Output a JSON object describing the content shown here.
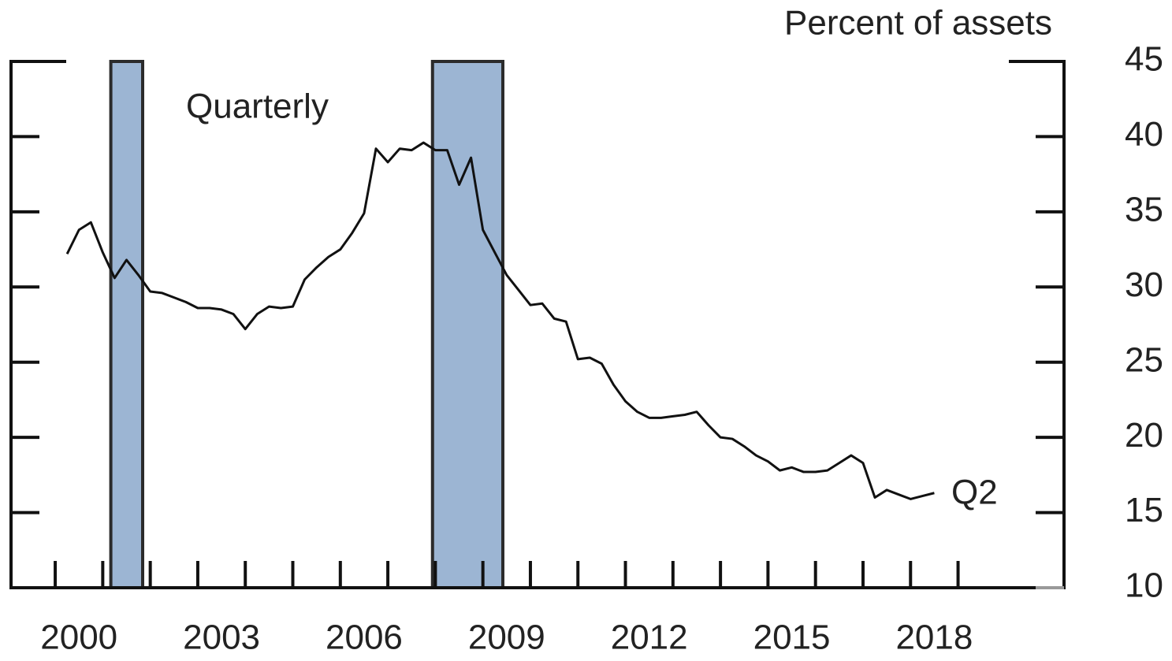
{
  "chart_data": {
    "type": "line",
    "y_axis_label": "Percent of assets",
    "annotations": [
      "Quarterly",
      "Q2"
    ],
    "x": [
      2000.25,
      2000.5,
      2000.75,
      2001,
      2001.25,
      2001.5,
      2001.75,
      2002,
      2002.25,
      2002.5,
      2002.75,
      2003,
      2003.25,
      2003.5,
      2003.75,
      2004,
      2004.25,
      2004.5,
      2004.75,
      2005,
      2005.25,
      2005.5,
      2005.75,
      2006,
      2006.25,
      2006.5,
      2006.75,
      2007,
      2007.25,
      2007.5,
      2007.75,
      2008,
      2008.25,
      2008.5,
      2008.75,
      2009,
      2009.25,
      2009.5,
      2009.75,
      2010,
      2010.25,
      2010.5,
      2010.75,
      2011,
      2011.25,
      2011.5,
      2011.75,
      2012,
      2012.25,
      2012.5,
      2012.75,
      2013,
      2013.25,
      2013.5,
      2013.75,
      2014,
      2014.25,
      2014.5,
      2014.75,
      2015,
      2015.25,
      2015.5,
      2015.75,
      2016,
      2016.25,
      2016.5,
      2016.75,
      2017,
      2017.25,
      2017.5,
      2017.75,
      2018,
      2018.25,
      2018.5
    ],
    "series": [
      {
        "name": "Quarterly",
        "color": "#111111",
        "values": [
          32.2,
          33.8,
          34.3,
          32.3,
          30.6,
          31.8,
          30.8,
          29.7,
          29.6,
          29.3,
          29.0,
          28.6,
          28.6,
          28.5,
          28.2,
          27.2,
          28.2,
          28.7,
          28.6,
          28.7,
          30.5,
          31.3,
          32.0,
          32.5,
          33.6,
          34.9,
          39.2,
          38.3,
          39.2,
          39.1,
          39.6,
          39.1,
          39.1,
          36.8,
          38.6,
          33.8,
          32.3,
          30.8,
          29.8,
          28.8,
          28.9,
          27.9,
          27.7,
          25.2,
          25.3,
          24.9,
          23.5,
          22.4,
          21.7,
          21.3,
          21.3,
          21.4,
          21.5,
          21.7,
          20.8,
          20.0,
          19.9,
          19.4,
          18.8,
          18.4,
          17.8,
          18.0,
          17.7,
          17.7,
          17.8,
          18.3,
          18.8,
          18.3,
          16.0,
          16.5,
          16.2,
          15.9,
          16.1,
          16.3
        ]
      }
    ],
    "recessions": [
      [
        2001.17,
        2001.84
      ],
      [
        2007.94,
        2009.42
      ]
    ],
    "recession_color": "#9cb5d3",
    "xlim": [
      1999.07,
      2021.23
    ],
    "xticks": [
      2000,
      2001,
      2002,
      2003,
      2004,
      2005,
      2006,
      2007,
      2008,
      2009,
      2010,
      2011,
      2012,
      2013,
      2014,
      2015,
      2016,
      2017,
      2018,
      2019
    ],
    "xtick_labels": [
      {
        "value": 2000.5,
        "label": "2000"
      },
      {
        "value": 2003.5,
        "label": "2003"
      },
      {
        "value": 2006.5,
        "label": "2006"
      },
      {
        "value": 2009.5,
        "label": "2009"
      },
      {
        "value": 2012.5,
        "label": "2012"
      },
      {
        "value": 2015.5,
        "label": "2015"
      },
      {
        "value": 2018.5,
        "label": "2018"
      }
    ],
    "ylim": [
      10,
      45
    ],
    "yticks": [
      10,
      15,
      20,
      25,
      30,
      35,
      40,
      45
    ]
  }
}
